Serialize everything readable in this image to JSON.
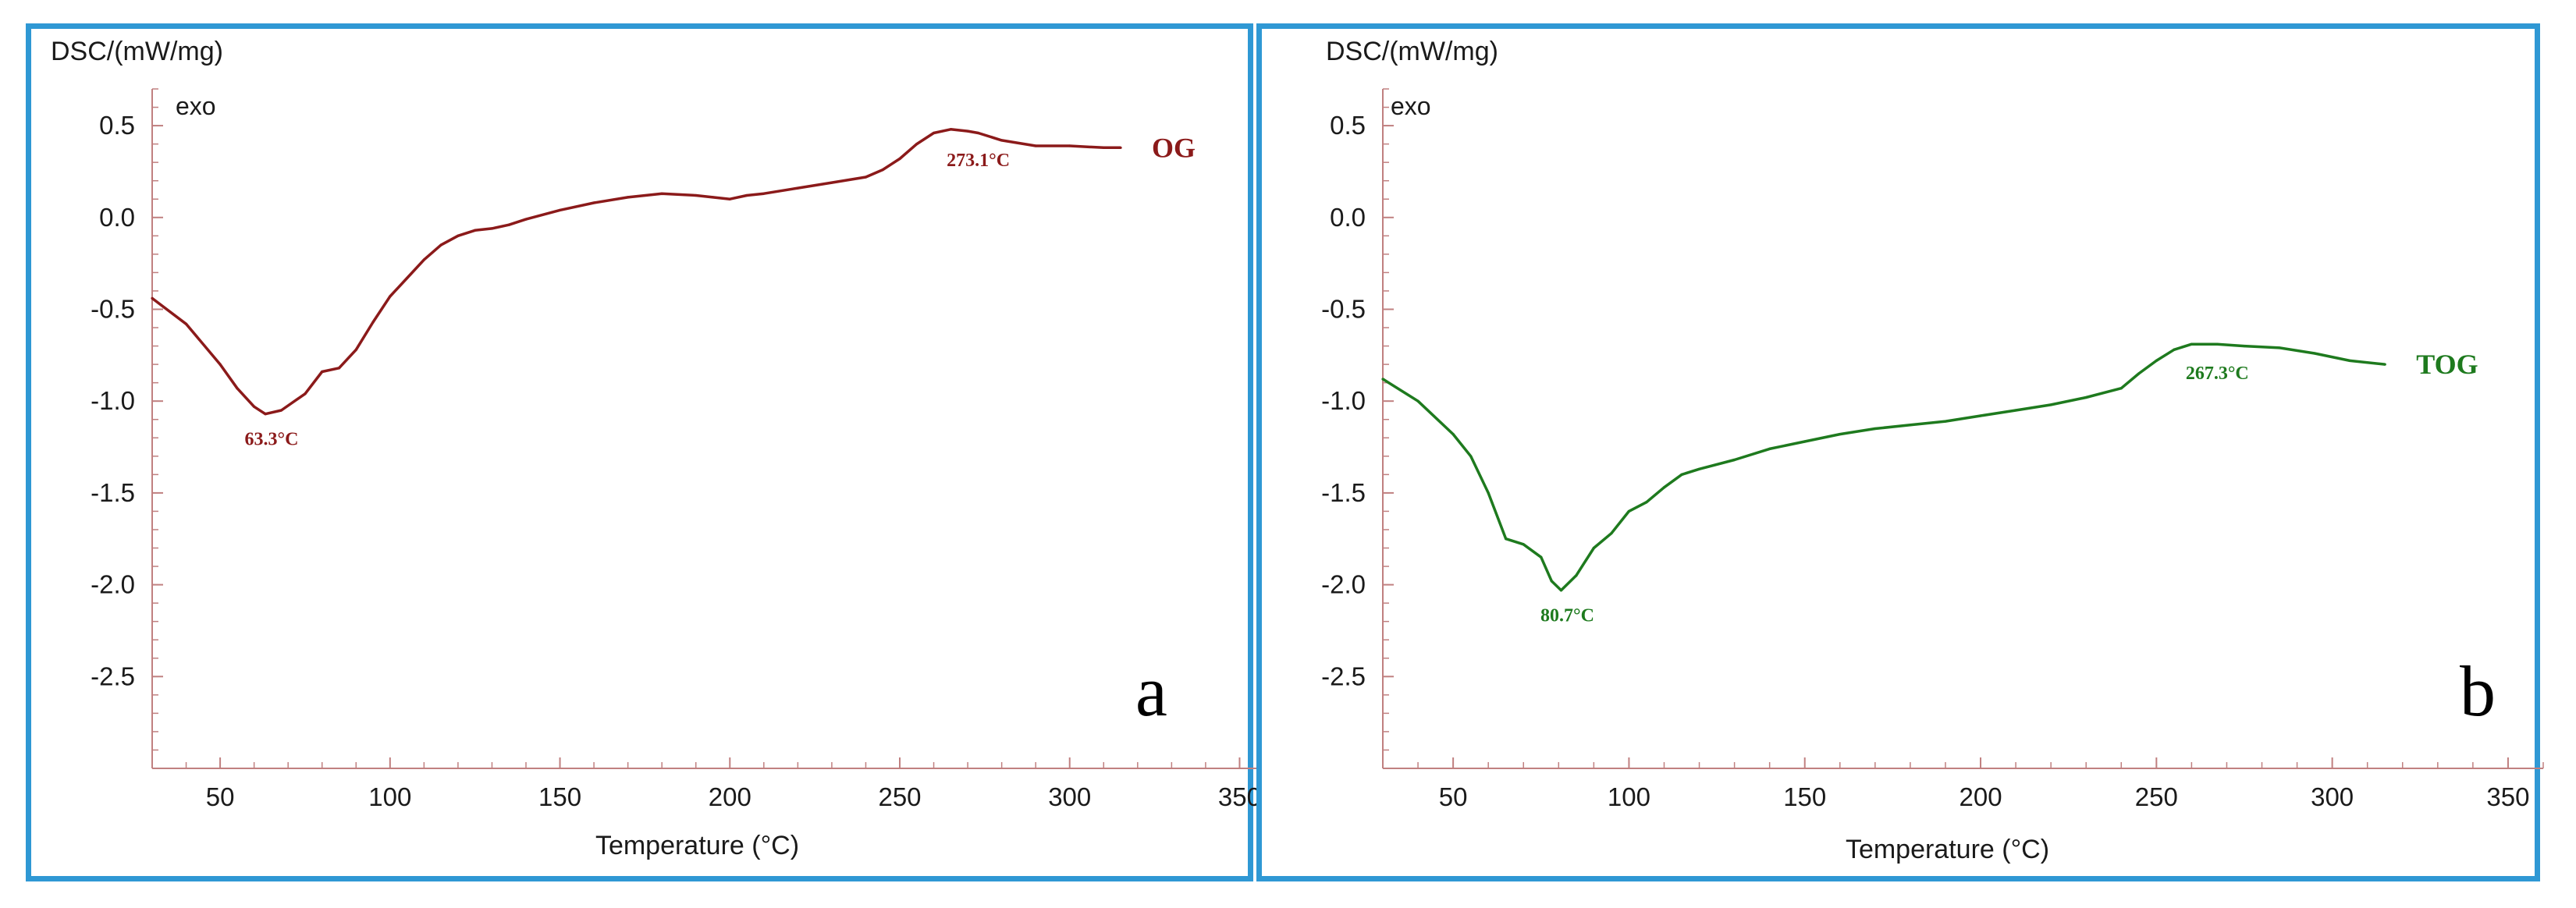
{
  "chart_data": [
    {
      "type": "line",
      "panel_label": "a",
      "ylabel": "DSC/(mW/mg)",
      "exo_label": "exo",
      "xlabel": "Temperature (°C)",
      "xlim": [
        30,
        360
      ],
      "ylim": [
        -3.0,
        0.7
      ],
      "xticks": [
        50,
        100,
        150,
        200,
        250,
        300,
        350
      ],
      "xtick_labels": [
        "50",
        "100",
        "150",
        "200",
        "250",
        "300",
        "350"
      ],
      "yticks": [
        0.5,
        0.0,
        -0.5,
        -1.0,
        -1.5,
        -2.0,
        -2.5
      ],
      "ytick_labels": [
        "0.5",
        "0.0",
        "-0.5",
        "-1.0",
        "-1.5",
        "-2.0",
        "-2.5"
      ],
      "color": "#8b1a1a",
      "series": [
        {
          "name": "OG",
          "x": [
            30,
            40,
            50,
            55,
            60,
            63.3,
            68,
            75,
            80,
            85,
            90,
            95,
            100,
            105,
            110,
            115,
            120,
            125,
            130,
            135,
            140,
            150,
            160,
            170,
            180,
            190,
            195,
            200,
            205,
            210,
            220,
            230,
            240,
            245,
            250,
            255,
            260,
            265,
            270,
            273.1,
            280,
            290,
            300,
            310,
            315
          ],
          "y": [
            -0.44,
            -0.58,
            -0.8,
            -0.93,
            -1.03,
            -1.07,
            -1.05,
            -0.96,
            -0.84,
            -0.82,
            -0.72,
            -0.57,
            -0.43,
            -0.33,
            -0.23,
            -0.15,
            -0.1,
            -0.07,
            -0.06,
            -0.04,
            -0.01,
            0.04,
            0.08,
            0.11,
            0.13,
            0.12,
            0.11,
            0.1,
            0.12,
            0.13,
            0.16,
            0.19,
            0.22,
            0.26,
            0.32,
            0.4,
            0.46,
            0.48,
            0.47,
            0.46,
            0.42,
            0.39,
            0.39,
            0.38,
            0.38
          ]
        }
      ],
      "annotations": [
        {
          "text": "63.3°C",
          "x": 63.3,
          "y": -1.07
        },
        {
          "text": "273.1°C",
          "x": 273.1,
          "y": 0.47
        }
      ]
    },
    {
      "type": "line",
      "panel_label": "b",
      "ylabel": "DSC/(mW/mg)",
      "exo_label": "exo",
      "xlabel": "Temperature (°C)",
      "xlim": [
        30,
        360
      ],
      "ylim": [
        -3.0,
        0.7
      ],
      "xticks": [
        50,
        100,
        150,
        200,
        250,
        300,
        350
      ],
      "xtick_labels": [
        "50",
        "100",
        "150",
        "200",
        "250",
        "300",
        "350"
      ],
      "yticks": [
        0.5,
        0.0,
        -0.5,
        -1.0,
        -1.5,
        -2.0,
        -2.5
      ],
      "ytick_labels": [
        "0.5",
        "0.0",
        "-0.5",
        "-1.0",
        "-1.5",
        "-2.0",
        "-2.5"
      ],
      "color": "#1e7a1e",
      "series": [
        {
          "name": "TOG",
          "x": [
            30,
            40,
            50,
            55,
            60,
            65,
            70,
            75,
            78,
            80.7,
            85,
            90,
            95,
            100,
            105,
            110,
            115,
            120,
            130,
            140,
            150,
            160,
            170,
            180,
            190,
            200,
            210,
            220,
            230,
            240,
            245,
            250,
            255,
            260,
            267.3,
            275,
            285,
            295,
            305,
            315
          ],
          "y": [
            -0.88,
            -1.0,
            -1.18,
            -1.3,
            -1.5,
            -1.75,
            -1.78,
            -1.85,
            -1.98,
            -2.03,
            -1.95,
            -1.8,
            -1.72,
            -1.6,
            -1.55,
            -1.47,
            -1.4,
            -1.37,
            -1.32,
            -1.26,
            -1.22,
            -1.18,
            -1.15,
            -1.13,
            -1.11,
            -1.08,
            -1.05,
            -1.02,
            -0.98,
            -0.93,
            -0.85,
            -0.78,
            -0.72,
            -0.69,
            -0.69,
            -0.7,
            -0.71,
            -0.74,
            -0.78,
            -0.8
          ]
        }
      ],
      "annotations": [
        {
          "text": "80.7°C",
          "x": 80.7,
          "y": -2.03
        },
        {
          "text": "267.3°C",
          "x": 267.3,
          "y": -0.69
        }
      ]
    }
  ]
}
